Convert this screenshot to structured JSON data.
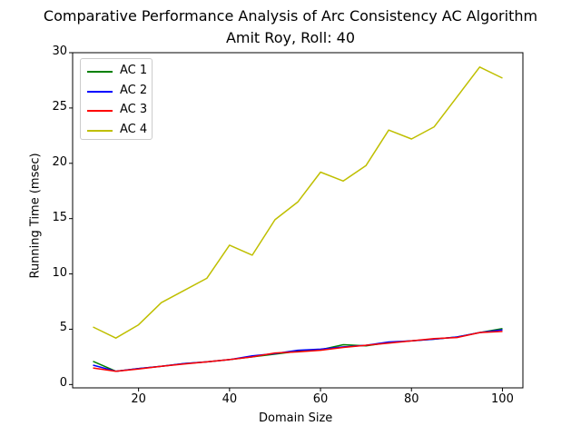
{
  "title": "Comparative Performance Analysis of Arc Consistency AC Algorithm",
  "subtitle": "Amit Roy, Roll: 40",
  "chart_data": {
    "type": "line",
    "title": "Comparative Performance Analysis of Arc Consistency AC Algorithm",
    "subtitle": "Amit Roy, Roll: 40",
    "xlabel": "Domain Size",
    "ylabel": "Running Time (msec)",
    "xlim": [
      5.5,
      104.5
    ],
    "ylim": [
      -0.3,
      30
    ],
    "xticks": [
      20,
      40,
      60,
      80,
      100
    ],
    "yticks": [
      0,
      5,
      10,
      15,
      20,
      25,
      30
    ],
    "grid": false,
    "legend_position": "top-left",
    "x": [
      10,
      15,
      20,
      25,
      30,
      35,
      40,
      45,
      50,
      55,
      60,
      65,
      70,
      75,
      80,
      85,
      90,
      95,
      100
    ],
    "series": [
      {
        "name": "AC 1",
        "color": "#008000",
        "values": [
          2.1,
          1.2,
          1.45,
          1.65,
          1.9,
          2.05,
          2.25,
          2.5,
          2.75,
          3.0,
          3.15,
          3.6,
          3.5,
          3.8,
          3.95,
          4.1,
          4.3,
          4.7,
          5.05
        ]
      },
      {
        "name": "AC 2",
        "color": "#0000ff",
        "values": [
          1.75,
          1.2,
          1.45,
          1.65,
          1.9,
          2.05,
          2.25,
          2.6,
          2.8,
          3.1,
          3.2,
          3.4,
          3.55,
          3.85,
          3.95,
          4.1,
          4.3,
          4.7,
          4.95
        ]
      },
      {
        "name": "AC 3",
        "color": "#ff0000",
        "values": [
          1.5,
          1.2,
          1.4,
          1.65,
          1.85,
          2.05,
          2.25,
          2.5,
          2.85,
          2.95,
          3.1,
          3.35,
          3.55,
          3.75,
          3.95,
          4.15,
          4.25,
          4.7,
          4.8
        ]
      },
      {
        "name": "AC 4",
        "color": "#bfbf00",
        "values": [
          5.2,
          4.2,
          5.4,
          7.4,
          8.5,
          9.6,
          12.6,
          11.7,
          14.9,
          16.5,
          19.2,
          18.4,
          19.8,
          23.0,
          22.2,
          23.3,
          26.0,
          28.7,
          27.7
        ]
      }
    ]
  }
}
